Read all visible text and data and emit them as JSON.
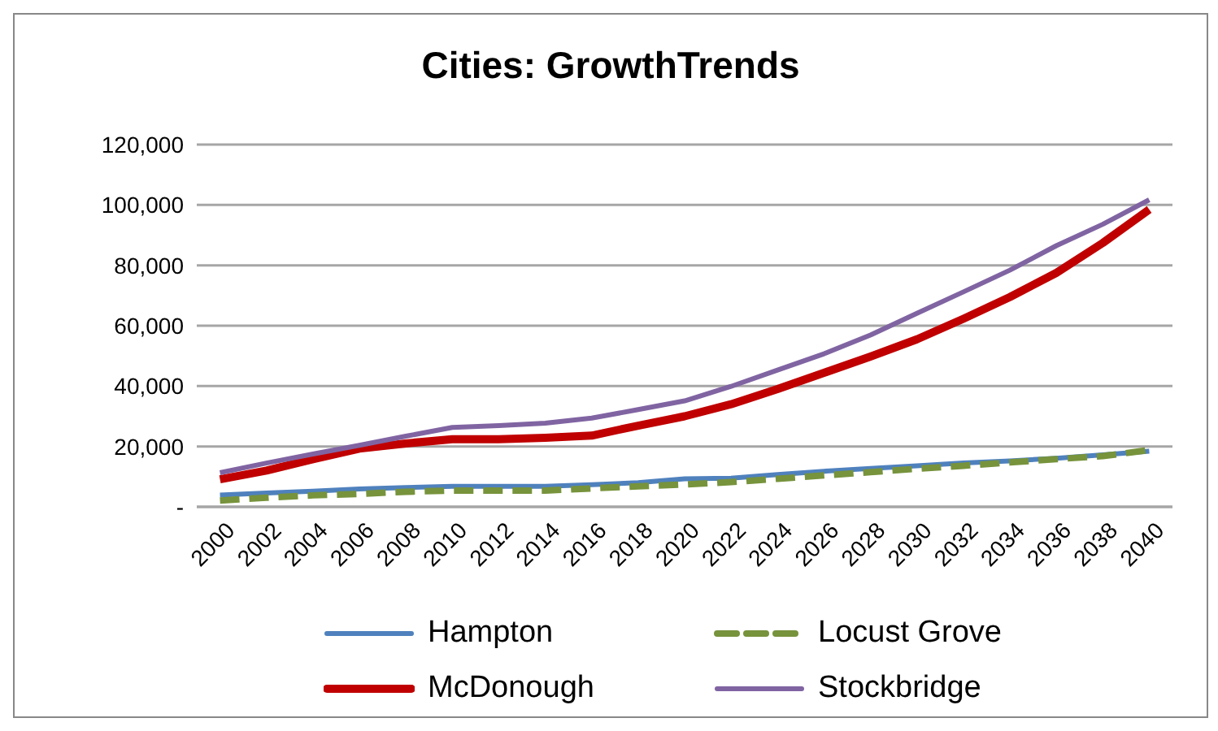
{
  "chart_data": {
    "type": "line",
    "title": "Cities: GrowthTrends",
    "categories": [
      "2000",
      "2002",
      "2004",
      "2006",
      "2008",
      "2010",
      "2012",
      "2014",
      "2016",
      "2018",
      "2020",
      "2022",
      "2024",
      "2026",
      "2028",
      "2030",
      "2032",
      "2034",
      "2036",
      "2038",
      "2040"
    ],
    "series": [
      {
        "name": "Hampton",
        "color": "#4f81bd",
        "values": [
          3900,
          4600,
          5200,
          5900,
          6400,
          6800,
          6800,
          6800,
          7300,
          8000,
          9300,
          9500,
          10700,
          11800,
          12700,
          13600,
          14500,
          15200,
          16100,
          17200,
          18400
        ]
      },
      {
        "name": "Locust Grove",
        "color": "#77933c",
        "line_style": "dashed",
        "values": [
          2100,
          3000,
          3800,
          4300,
          5000,
          5400,
          5400,
          5400,
          6100,
          6800,
          7400,
          8200,
          9300,
          10400,
          11500,
          12600,
          13600,
          14700,
          15800,
          16800,
          18800
        ]
      },
      {
        "name": "McDonough",
        "color": "#c00000",
        "values": [
          9100,
          12000,
          15800,
          19300,
          21000,
          22400,
          22400,
          22900,
          23600,
          26900,
          30000,
          34000,
          39000,
          44400,
          49800,
          55500,
          62300,
          69500,
          77500,
          87400,
          98500
        ]
      },
      {
        "name": "Stockbridge",
        "color": "#8064a2",
        "values": [
          11300,
          14500,
          17500,
          20400,
          23400,
          26300,
          26900,
          27700,
          29400,
          32200,
          35100,
          39900,
          45300,
          50700,
          56900,
          64100,
          71200,
          78400,
          86500,
          93600,
          101700
        ]
      }
    ],
    "ylim": [
      0,
      120000
    ],
    "yticks": [
      {
        "value": 0,
        "label": "-"
      },
      {
        "value": 20000,
        "label": "20,000"
      },
      {
        "value": 40000,
        "label": "40,000"
      },
      {
        "value": 60000,
        "label": "60,000"
      },
      {
        "value": 80000,
        "label": "80,000"
      },
      {
        "value": 100000,
        "label": "100,000"
      },
      {
        "value": 120000,
        "label": "120,000"
      }
    ],
    "grid": "y",
    "legend": "bottom",
    "marker": "none"
  }
}
